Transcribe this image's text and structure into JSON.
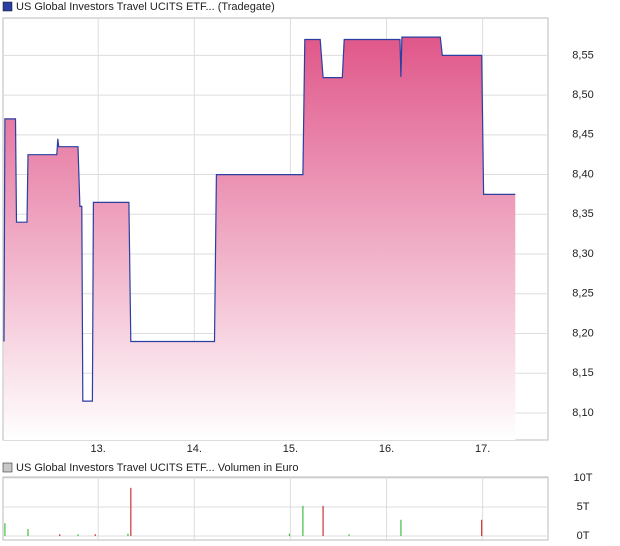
{
  "chart_data": [
    {
      "type": "line",
      "xlim": [
        12.01,
        17.68
      ],
      "ylim": [
        8.066,
        8.597
      ],
      "xticks": [
        {
          "value": 13,
          "label": "13."
        },
        {
          "value": 14,
          "label": "14."
        },
        {
          "value": 15,
          "label": "15."
        },
        {
          "value": 16,
          "label": "16."
        },
        {
          "value": 17,
          "label": "17."
        }
      ],
      "yticks": [
        {
          "value": 8.1,
          "label": "8,10"
        },
        {
          "value": 8.15,
          "label": "8,15"
        },
        {
          "value": 8.2,
          "label": "8,20"
        },
        {
          "value": 8.25,
          "label": "8,25"
        },
        {
          "value": 8.3,
          "label": "8,30"
        },
        {
          "value": 8.35,
          "label": "8,35"
        },
        {
          "value": 8.4,
          "label": "8,40"
        },
        {
          "value": 8.45,
          "label": "8,45"
        },
        {
          "value": 8.5,
          "label": "8,50"
        },
        {
          "value": 8.55,
          "label": "8,55"
        }
      ],
      "grid": true,
      "series": [
        {
          "name": "US Global Investors Travel UCITS ETF... (Tradegate)",
          "color": "#2a3fa0",
          "x": [
            12.02,
            12.03,
            12.14,
            12.15,
            12.26,
            12.27,
            12.57,
            12.58,
            12.59,
            12.79,
            12.81,
            12.83,
            12.84,
            12.94,
            12.95,
            13.32,
            13.34,
            14.21,
            14.23,
            15.13,
            15.15,
            15.31,
            15.34,
            15.54,
            15.56,
            16.14,
            16.15,
            16.16,
            16.56,
            16.58,
            16.99,
            17.01,
            17.34
          ],
          "values": [
            8.19,
            8.47,
            8.47,
            8.34,
            8.34,
            8.425,
            8.425,
            8.445,
            8.435,
            8.435,
            8.36,
            8.36,
            8.115,
            8.115,
            8.365,
            8.365,
            8.19,
            8.19,
            8.4,
            8.4,
            8.57,
            8.57,
            8.522,
            8.522,
            8.57,
            8.57,
            8.523,
            8.573,
            8.573,
            8.55,
            8.55,
            8.375,
            8.375
          ]
        }
      ]
    },
    {
      "type": "volume",
      "xlim": [
        12.01,
        17.68
      ],
      "ylim": [
        -690,
        10170
      ],
      "yticks": [
        {
          "value": 0,
          "label": "0T"
        },
        {
          "value": 5000,
          "label": "5T"
        },
        {
          "value": 10000,
          "label": "10T"
        }
      ],
      "series": [
        {
          "name": "US Global Investors Travel UCITS ETF... Volumen in Euro",
          "color": "#c8c8c8",
          "x": [
            12.03,
            12.27,
            12.6,
            12.79,
            12.97,
            13.31,
            13.34,
            14.99,
            15.13,
            15.34,
            15.61,
            16.15,
            16.99
          ],
          "values": [
            2200,
            1200,
            300,
            300,
            300,
            400,
            8300,
            400,
            5200,
            5200,
            300,
            2800,
            2800
          ],
          "colors": [
            "#44bb44",
            "#44bb44",
            "#cc3333",
            "#44bb44",
            "#cc3333",
            "#44bb44",
            "#cc3333",
            "#44bb44",
            "#44bb44",
            "#cc3333",
            "#44bb44",
            "#44bb44",
            "#cc3333"
          ]
        }
      ]
    }
  ]
}
